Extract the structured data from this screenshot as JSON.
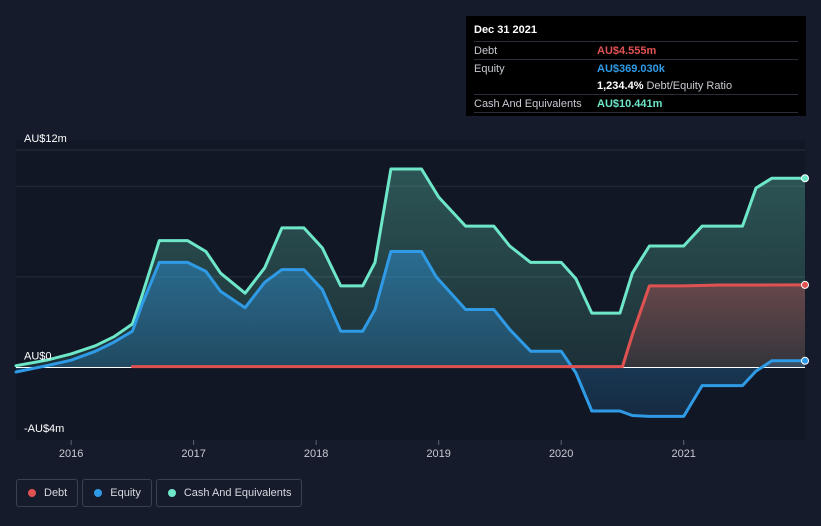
{
  "chart_data": {
    "type": "area",
    "currency": "AU$",
    "y_ticks": [
      {
        "label": "AU$12m",
        "value": 12
      },
      {
        "label": "AU$0",
        "value": 0
      },
      {
        "label": "-AU$4m",
        "value": -4
      }
    ],
    "ylim": [
      -4,
      12
    ],
    "xlim": [
      2015.55,
      2021.99
    ],
    "x_ticks": [
      {
        "label": "2016",
        "value": 2016
      },
      {
        "label": "2017",
        "value": 2017
      },
      {
        "label": "2018",
        "value": 2018
      },
      {
        "label": "2019",
        "value": 2019
      },
      {
        "label": "2020",
        "value": 2020
      },
      {
        "label": "2021",
        "value": 2021
      }
    ],
    "series": [
      {
        "name": "Cash And Equivalents",
        "key": "cash",
        "color": "#6ee7c9",
        "points": [
          [
            2015.55,
            0.1
          ],
          [
            2015.8,
            0.4
          ],
          [
            2016.0,
            0.75
          ],
          [
            2016.2,
            1.2
          ],
          [
            2016.35,
            1.7
          ],
          [
            2016.5,
            2.4
          ],
          [
            2016.58,
            4.0
          ],
          [
            2016.72,
            7.0
          ],
          [
            2016.95,
            7.0
          ],
          [
            2017.1,
            6.4
          ],
          [
            2017.22,
            5.2
          ],
          [
            2017.42,
            4.1
          ],
          [
            2017.58,
            5.5
          ],
          [
            2017.72,
            7.7
          ],
          [
            2017.9,
            7.7
          ],
          [
            2018.05,
            6.6
          ],
          [
            2018.2,
            4.5
          ],
          [
            2018.38,
            4.5
          ],
          [
            2018.48,
            5.8
          ],
          [
            2018.61,
            10.95
          ],
          [
            2018.86,
            10.95
          ],
          [
            2019.0,
            9.4
          ],
          [
            2019.22,
            7.8
          ],
          [
            2019.45,
            7.8
          ],
          [
            2019.58,
            6.7
          ],
          [
            2019.75,
            5.8
          ],
          [
            2020.0,
            5.8
          ],
          [
            2020.12,
            4.9
          ],
          [
            2020.25,
            3.0
          ],
          [
            2020.48,
            3.0
          ],
          [
            2020.58,
            5.2
          ],
          [
            2020.72,
            6.7
          ],
          [
            2021.0,
            6.7
          ],
          [
            2021.15,
            7.8
          ],
          [
            2021.48,
            7.8
          ],
          [
            2021.59,
            9.9
          ],
          [
            2021.72,
            10.44
          ],
          [
            2021.99,
            10.44
          ]
        ]
      },
      {
        "name": "Equity",
        "key": "equity",
        "color": "#2f9be6",
        "points": [
          [
            2015.55,
            -0.25
          ],
          [
            2015.8,
            0.1
          ],
          [
            2016.0,
            0.4
          ],
          [
            2016.2,
            0.9
          ],
          [
            2016.35,
            1.4
          ],
          [
            2016.5,
            2.0
          ],
          [
            2016.58,
            3.5
          ],
          [
            2016.72,
            5.8
          ],
          [
            2016.95,
            5.8
          ],
          [
            2017.1,
            5.3
          ],
          [
            2017.22,
            4.2
          ],
          [
            2017.42,
            3.3
          ],
          [
            2017.58,
            4.7
          ],
          [
            2017.72,
            5.4
          ],
          [
            2017.9,
            5.4
          ],
          [
            2018.05,
            4.3
          ],
          [
            2018.2,
            2.0
          ],
          [
            2018.38,
            2.0
          ],
          [
            2018.48,
            3.2
          ],
          [
            2018.61,
            6.4
          ],
          [
            2018.86,
            6.4
          ],
          [
            2018.98,
            5.0
          ],
          [
            2019.22,
            3.2
          ],
          [
            2019.45,
            3.2
          ],
          [
            2019.58,
            2.1
          ],
          [
            2019.75,
            0.9
          ],
          [
            2020.0,
            0.9
          ],
          [
            2020.12,
            -0.3
          ],
          [
            2020.25,
            -2.4
          ],
          [
            2020.48,
            -2.4
          ],
          [
            2020.58,
            -2.65
          ],
          [
            2020.72,
            -2.7
          ],
          [
            2021.0,
            -2.7
          ],
          [
            2021.15,
            -1.0
          ],
          [
            2021.48,
            -1.0
          ],
          [
            2021.59,
            -0.2
          ],
          [
            2021.72,
            0.37
          ],
          [
            2021.99,
            0.37
          ]
        ]
      },
      {
        "name": "Debt",
        "key": "debt",
        "color": "#e05252",
        "points": [
          [
            2016.5,
            0.05
          ],
          [
            2020.5,
            0.05
          ],
          [
            2020.58,
            1.8
          ],
          [
            2020.72,
            4.5
          ],
          [
            2021.0,
            4.5
          ],
          [
            2021.3,
            4.55
          ],
          [
            2021.99,
            4.555
          ]
        ]
      }
    ]
  },
  "tooltip": {
    "date": "Dec 31 2021",
    "rows": [
      {
        "label": "Debt",
        "value": "AU$4.555m",
        "color": "#e05252"
      },
      {
        "label": "Equity",
        "value": "AU$369.030k",
        "color": "#2f9be6"
      },
      {
        "label": "",
        "value": "1,234.4%",
        "suffix": "Debt/Equity Ratio",
        "color": "#ffffff"
      },
      {
        "label": "Cash And Equivalents",
        "value": "AU$10.441m",
        "color": "#6ee7c9"
      }
    ]
  },
  "legend": [
    {
      "label": "Debt",
      "color": "#e05252"
    },
    {
      "label": "Equity",
      "color": "#2f9be6"
    },
    {
      "label": "Cash And Equivalents",
      "color": "#6ee7c9"
    }
  ]
}
